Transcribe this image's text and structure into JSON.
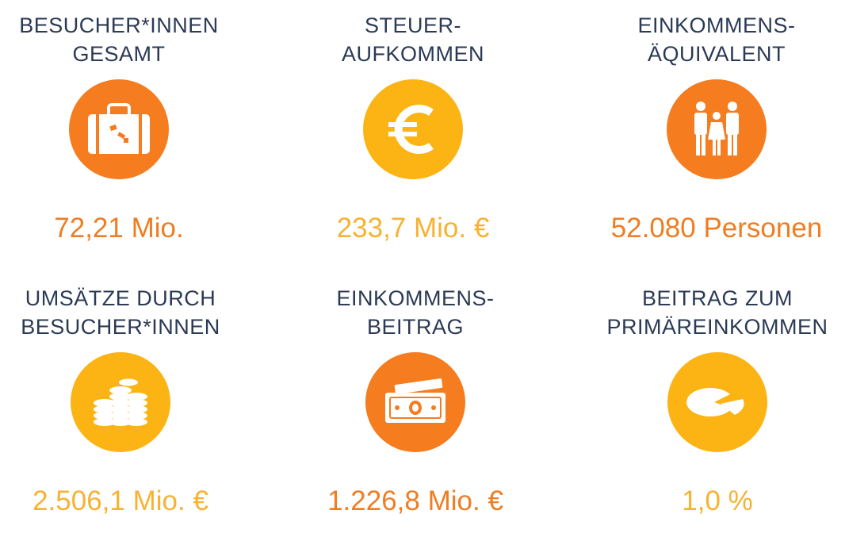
{
  "colors": {
    "orange": "#f57c1f",
    "amber": "#fbb414",
    "value_orange": "#ef7d22",
    "value_amber": "#f8b232",
    "title": "#2b3a55"
  },
  "tiles": [
    {
      "title_line1": "BESUCHER*INNEN",
      "title_line2": "GESAMT",
      "icon": "suitcase-icon",
      "value": "72,21 Mio."
    },
    {
      "title_line1": "STEUER-",
      "title_line2": "AUFKOMMEN",
      "icon": "euro-icon",
      "value": "233,7 Mio. €"
    },
    {
      "title_line1": "EINKOMMENS-",
      "title_line2": "ÄQUIVALENT",
      "icon": "family-icon",
      "value": "52.080 Personen"
    },
    {
      "title_line1": "UMSÄTZE DURCH",
      "title_line2": "BESUCHER*INNEN",
      "icon": "coins-icon",
      "value": "2.506,1 Mio. €"
    },
    {
      "title_line1": "EINKOMMENS-",
      "title_line2": "BEITRAG",
      "icon": "banknote-icon",
      "value": "1.226,8 Mio. €"
    },
    {
      "title_line1": "BEITRAG ZUM",
      "title_line2": "PRIMÄREINKOMMEN",
      "icon": "pie-chart-icon",
      "value": "1,0 %"
    }
  ]
}
